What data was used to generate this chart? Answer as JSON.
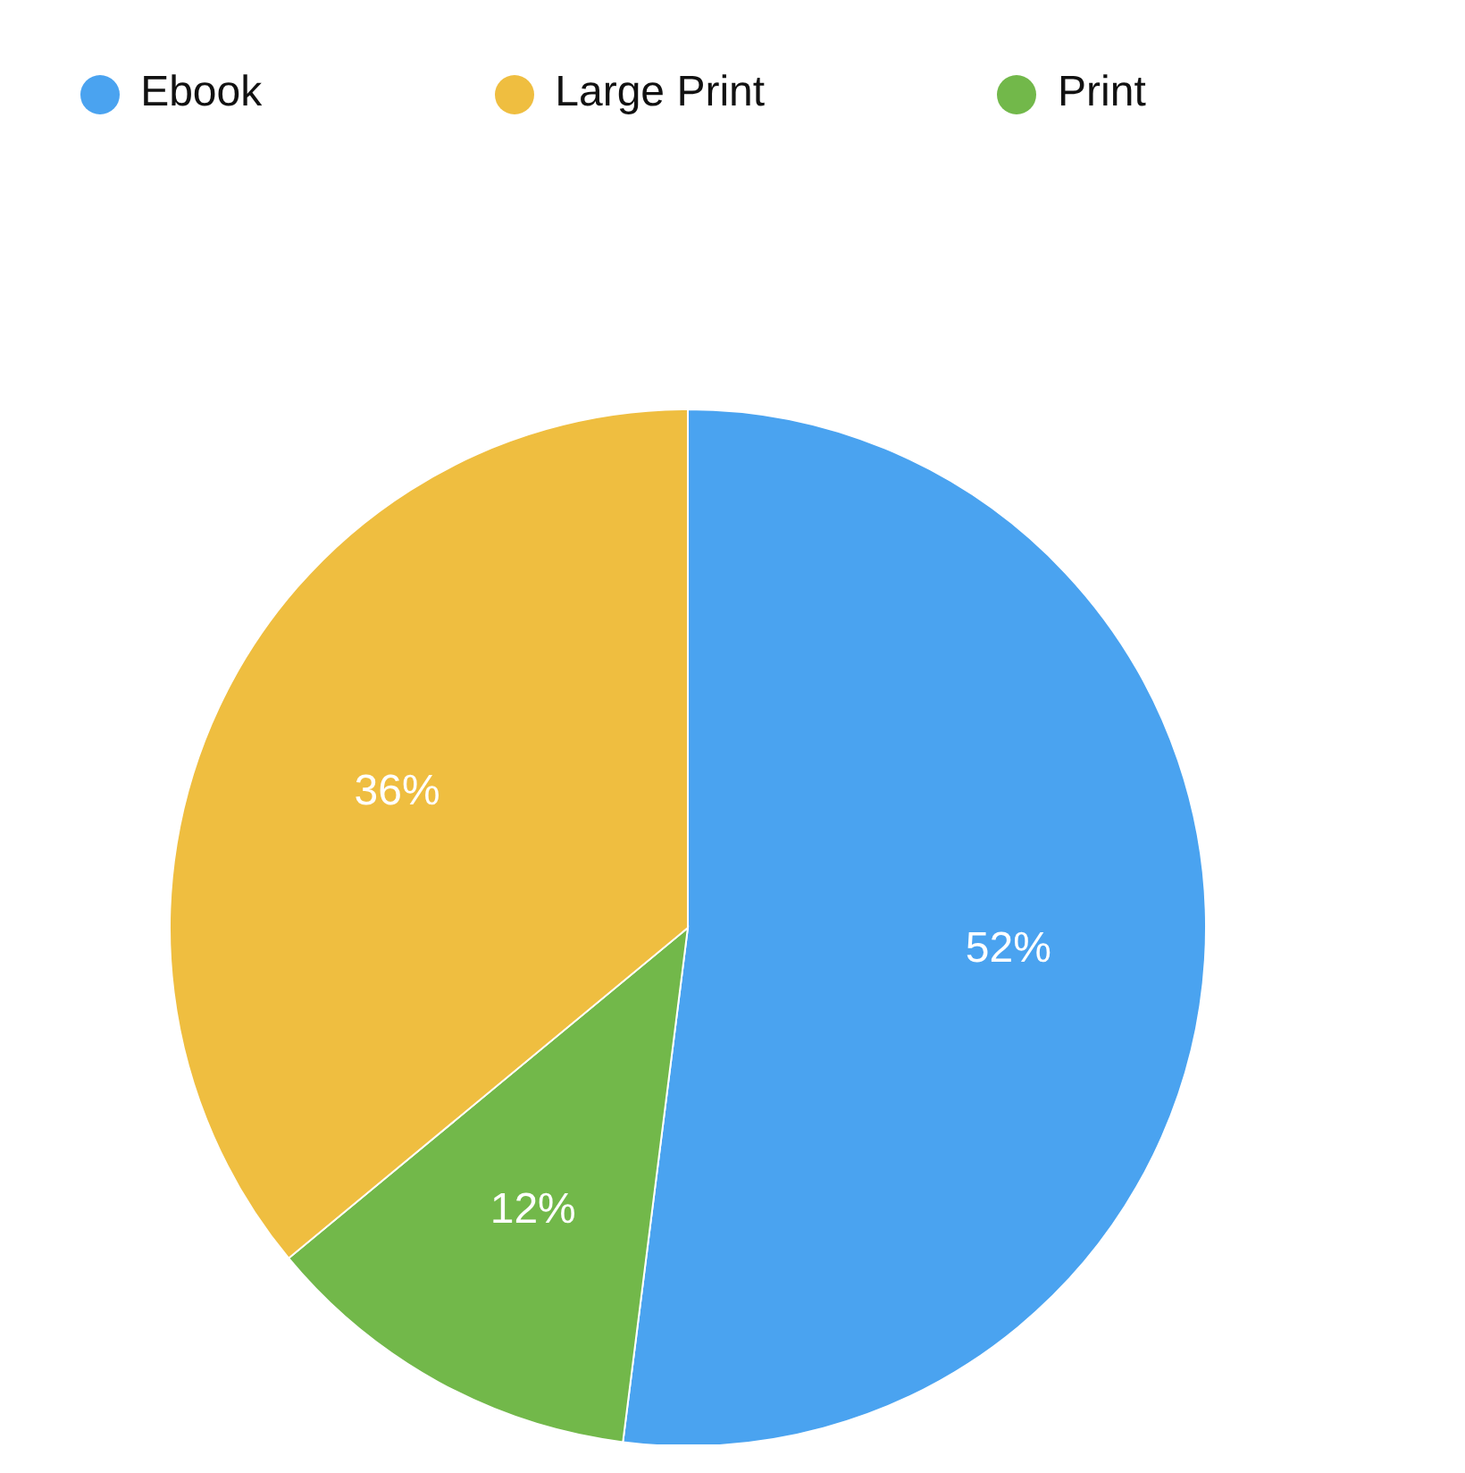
{
  "chart_data": {
    "type": "pie",
    "categories": [
      "Ebook",
      "Print",
      "Large Print"
    ],
    "values": [
      52,
      12,
      36
    ],
    "colors": [
      "#4aa3f0",
      "#72b84a",
      "#efbe40"
    ],
    "value_labels": [
      "52%",
      "12%",
      "36%"
    ],
    "legend": "top"
  }
}
